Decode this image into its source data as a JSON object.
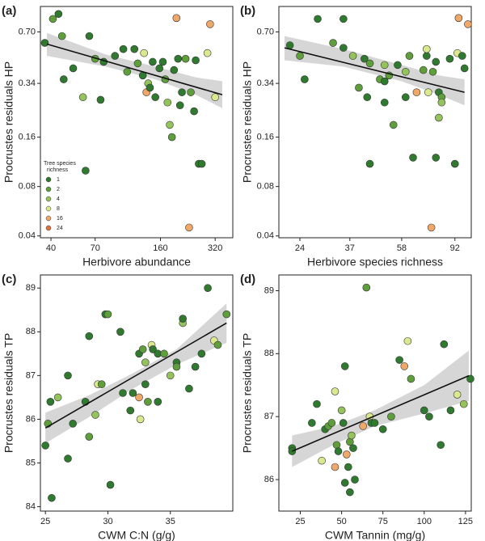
{
  "legend": {
    "title_lines": [
      "Tree species",
      "richness"
    ],
    "levels": [
      1,
      2,
      4,
      8,
      16,
      24
    ],
    "colors": [
      "#2f7a2f",
      "#5e9f3c",
      "#93c35a",
      "#dbe98e",
      "#f0a868",
      "#e2703e"
    ]
  },
  "chart_data": [
    {
      "type": "scatter",
      "panel": "(a)",
      "xlabel": "Herbivore abundance",
      "ylabel": "Procrustes residuals HP",
      "xscale": "log",
      "yscale": "log",
      "xlim": [
        35,
        400
      ],
      "ylim": [
        0.039,
        1.0
      ],
      "xticks": [
        40,
        70,
        160,
        320
      ],
      "yticks": [
        0.04,
        0.08,
        0.16,
        0.34,
        {
          "value": 0.7,
          "label": "0.70"
        }
      ],
      "show_legend": true,
      "x": [
        37,
        41,
        44,
        46,
        47,
        53,
        60,
        62,
        65,
        70,
        75,
        78,
        90,
        100,
        105,
        115,
        120,
        128,
        130,
        134,
        137,
        140,
        145,
        150,
        158,
        165,
        170,
        175,
        180,
        185,
        190,
        196,
        200,
        205,
        210,
        220,
        235,
        245,
        260,
        270,
        290,
        300,
        320,
        230,
        250
      ],
      "y": [
        0.6,
        0.84,
        0.9,
        0.66,
        0.36,
        0.42,
        0.28,
        0.1,
        0.66,
        0.48,
        0.27,
        0.46,
        0.5,
        0.55,
        0.4,
        0.55,
        0.45,
        0.38,
        0.52,
        0.3,
        0.34,
        0.32,
        0.46,
        0.28,
        0.42,
        0.46,
        0.36,
        0.26,
        0.19,
        0.16,
        0.41,
        0.85,
        0.48,
        0.25,
        0.3,
        0.48,
        0.3,
        0.23,
        0.11,
        0.11,
        0.52,
        0.78,
        0.28,
        0.045,
        0.47
      ],
      "richness": [
        1,
        2,
        1,
        2,
        1,
        1,
        4,
        1,
        1,
        2,
        1,
        1,
        1,
        1,
        2,
        1,
        2,
        1,
        8,
        16,
        4,
        1,
        1,
        1,
        1,
        1,
        2,
        4,
        4,
        2,
        1,
        16,
        1,
        1,
        1,
        2,
        2,
        1,
        1,
        1,
        8,
        16,
        8,
        16,
        1
      ],
      "fit": {
        "x": [
          38,
          350
        ],
        "y": [
          0.59,
          0.29
        ]
      },
      "band": {
        "x": [
          38,
          80,
          150,
          250,
          350
        ],
        "lower": [
          0.5,
          0.43,
          0.36,
          0.29,
          0.24
        ],
        "upper": [
          0.69,
          0.51,
          0.43,
          0.37,
          0.35
        ]
      }
    },
    {
      "type": "scatter",
      "panel": "(b)",
      "xlabel": "Herbivore species richness",
      "ylabel": "Procrustes residuals HP",
      "xscale": "log",
      "yscale": "log",
      "xlim": [
        20,
        106
      ],
      "ylim": [
        0.039,
        1.0
      ],
      "xticks": [
        24,
        37,
        58,
        92
      ],
      "yticks": [
        0.04,
        0.08,
        0.16,
        0.34,
        {
          "value": 0.7,
          "label": "0.70"
        }
      ],
      "show_legend": false,
      "x": [
        22,
        24,
        25,
        28,
        32,
        35,
        35,
        38,
        40,
        42,
        43,
        44,
        44,
        48,
        50,
        50,
        50,
        52,
        54,
        56,
        60,
        60,
        62,
        64,
        66,
        70,
        72,
        72,
        73,
        75,
        76,
        78,
        78,
        80,
        80,
        82,
        88,
        92,
        94,
        95,
        98,
        100,
        103,
        82
      ],
      "y": [
        0.58,
        0.5,
        0.36,
        0.84,
        0.6,
        0.56,
        0.84,
        0.5,
        0.32,
        0.48,
        0.28,
        0.45,
        0.11,
        0.36,
        0.35,
        0.26,
        0.44,
        0.38,
        0.19,
        0.44,
        0.28,
        0.4,
        0.5,
        0.12,
        0.3,
        0.41,
        0.5,
        0.55,
        0.3,
        0.045,
        0.4,
        0.46,
        0.12,
        0.3,
        0.21,
        0.28,
        0.48,
        0.11,
        0.52,
        0.85,
        0.5,
        0.42,
        0.78,
        0.26
      ],
      "richness": [
        1,
        2,
        1,
        1,
        2,
        1,
        1,
        4,
        2,
        1,
        1,
        2,
        1,
        2,
        1,
        1,
        4,
        2,
        2,
        1,
        1,
        4,
        2,
        1,
        16,
        2,
        1,
        8,
        8,
        16,
        2,
        1,
        1,
        1,
        4,
        2,
        1,
        1,
        8,
        16,
        1,
        1,
        16,
        4
      ],
      "fit": {
        "x": [
          21,
          100
        ],
        "y": [
          0.56,
          0.3
        ]
      },
      "band": {
        "x": [
          21,
          35,
          58,
          80,
          100
        ],
        "lower": [
          0.47,
          0.43,
          0.35,
          0.29,
          0.25
        ],
        "upper": [
          0.66,
          0.55,
          0.44,
          0.38,
          0.36
        ]
      }
    },
    {
      "type": "scatter",
      "panel": "(c)",
      "xlabel": "CWM C:N (g/g)",
      "ylabel": "Procrustes residuals TP",
      "xscale": "linear",
      "yscale": "linear",
      "xlim": [
        24.6,
        40
      ],
      "ylim": [
        83.9,
        89.3
      ],
      "xticks": [
        25,
        30,
        35
      ],
      "yticks": [
        84,
        85,
        86,
        87,
        88,
        89
      ],
      "show_legend": false,
      "x": [
        25.0,
        25.2,
        25.4,
        25.5,
        26.0,
        26.8,
        26.8,
        27.2,
        28.2,
        28.5,
        28.5,
        29.0,
        29.2,
        29.5,
        29.8,
        30.0,
        30.2,
        31.0,
        31.2,
        31.8,
        32.0,
        32.5,
        32.6,
        32.5,
        32.8,
        33.0,
        33.0,
        33.2,
        33.5,
        33.6,
        34.0,
        34.0,
        34.5,
        35.0,
        35.5,
        35.5,
        36.0,
        36.0,
        36.5,
        37.0,
        37.5,
        38.0,
        38.5,
        38.8,
        39.5
      ],
      "y": [
        85.4,
        85.9,
        86.4,
        84.2,
        86.5,
        87.0,
        85.1,
        85.9,
        86.4,
        87.9,
        85.6,
        86.1,
        86.8,
        86.8,
        88.4,
        88.4,
        84.5,
        88.0,
        86.6,
        86.2,
        86.6,
        87.5,
        86.0,
        86.5,
        87.6,
        87.3,
        86.8,
        86.4,
        87.7,
        87.6,
        87.5,
        86.4,
        87.5,
        87.0,
        87.3,
        87.2,
        88.2,
        88.3,
        86.7,
        87.2,
        87.5,
        89.0,
        87.8,
        87.7,
        88.4
      ],
      "richness": [
        1,
        2,
        1,
        1,
        4,
        1,
        1,
        1,
        1,
        1,
        2,
        4,
        8,
        2,
        1,
        2,
        1,
        1,
        1,
        1,
        1,
        1,
        8,
        16,
        2,
        4,
        1,
        2,
        8,
        1,
        1,
        1,
        2,
        4,
        1,
        2,
        4,
        1,
        1,
        1,
        1,
        1,
        8,
        2,
        2
      ],
      "fit": {
        "x": [
          25,
          39.5
        ],
        "y": [
          85.8,
          88.2
        ]
      },
      "band": {
        "x": [
          25,
          28.5,
          32,
          35.5,
          39.5
        ],
        "lower": [
          85.45,
          86.05,
          86.7,
          87.25,
          87.75
        ],
        "upper": [
          86.15,
          86.55,
          87.05,
          87.6,
          88.65
        ]
      }
    },
    {
      "type": "scatter",
      "panel": "(d)",
      "xlabel": "CWM Tannin (mg/g)",
      "ylabel": "Procrustes residuals TP",
      "xscale": "linear",
      "yscale": "linear",
      "xlim": [
        12,
        128.5
      ],
      "ylim": [
        85.5,
        89.25
      ],
      "xticks": [
        25,
        50,
        75,
        100,
        125
      ],
      "yticks": [
        86,
        87,
        88,
        89
      ],
      "show_legend": false,
      "x": [
        20,
        20,
        32,
        35,
        38,
        40,
        42,
        44,
        46,
        46,
        47,
        48,
        50,
        51,
        52,
        52,
        53,
        54,
        55,
        55,
        56,
        57,
        58,
        63,
        65,
        67,
        68,
        70,
        75,
        80,
        85,
        88,
        90,
        92,
        100,
        103,
        110,
        112,
        116,
        120,
        124,
        128
      ],
      "y": [
        86.5,
        86.45,
        86.9,
        87.2,
        86.3,
        86.8,
        86.85,
        86.9,
        87.4,
        86.2,
        86.55,
        86.45,
        87.1,
        86.9,
        87.8,
        85.95,
        86.4,
        86.2,
        86.6,
        85.8,
        86.7,
        86.5,
        86.0,
        86.85,
        89.05,
        87.0,
        86.9,
        86.9,
        86.8,
        87.0,
        87.9,
        87.8,
        88.2,
        87.6,
        87.1,
        87.0,
        86.55,
        88.15,
        87.1,
        87.35,
        87.2,
        87.6
      ],
      "richness": [
        1,
        1,
        1,
        1,
        8,
        1,
        2,
        2,
        8,
        16,
        2,
        1,
        4,
        1,
        1,
        1,
        16,
        1,
        2,
        1,
        4,
        1,
        1,
        16,
        2,
        8,
        1,
        1,
        1,
        2,
        1,
        16,
        8,
        2,
        1,
        1,
        1,
        1,
        1,
        8,
        4,
        1
      ],
      "fit": {
        "x": [
          20,
          127
        ],
        "y": [
          86.45,
          87.65
        ]
      },
      "band": {
        "x": [
          20,
          45,
          70,
          100,
          127
        ],
        "lower": [
          86.2,
          86.55,
          86.85,
          87.05,
          87.25
        ],
        "upper": [
          86.7,
          86.85,
          87.1,
          87.5,
          88.05
        ]
      }
    }
  ]
}
